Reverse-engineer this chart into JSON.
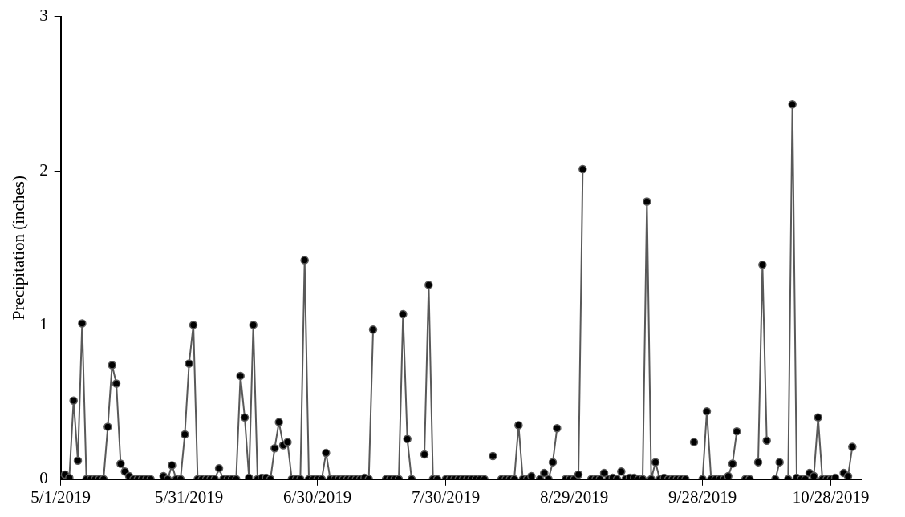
{
  "chart_data": {
    "type": "line",
    "ylabel": "Precipitation (inches)",
    "x": [
      "2019-05-01",
      "2019-05-02",
      "2019-05-03",
      "2019-05-04",
      "2019-05-05",
      "2019-05-06",
      "2019-05-07",
      "2019-05-08",
      "2019-05-09",
      "2019-05-10",
      "2019-05-11",
      "2019-05-12",
      "2019-05-13",
      "2019-05-14",
      "2019-05-15",
      "2019-05-16",
      "2019-05-17",
      "2019-05-18",
      "2019-05-19",
      "2019-05-20",
      "2019-05-21",
      "2019-05-22",
      "2019-05-23",
      "2019-05-24",
      "2019-05-25",
      "2019-05-26",
      "2019-05-27",
      "2019-05-28",
      "2019-05-29",
      "2019-05-30",
      "2019-05-31",
      "2019-06-01",
      "2019-06-02",
      "2019-06-03",
      "2019-06-04",
      "2019-06-05",
      "2019-06-06",
      "2019-06-07",
      "2019-06-08",
      "2019-06-09",
      "2019-06-10",
      "2019-06-11",
      "2019-06-12",
      "2019-06-13",
      "2019-06-14",
      "2019-06-15",
      "2019-06-16",
      "2019-06-17",
      "2019-06-18",
      "2019-06-19",
      "2019-06-20",
      "2019-06-21",
      "2019-06-22",
      "2019-06-23",
      "2019-06-24",
      "2019-06-25",
      "2019-06-26",
      "2019-06-27",
      "2019-06-28",
      "2019-06-29",
      "2019-06-30",
      "2019-07-01",
      "2019-07-02",
      "2019-07-03",
      "2019-07-04",
      "2019-07-05",
      "2019-07-06",
      "2019-07-07",
      "2019-07-08",
      "2019-07-09",
      "2019-07-10",
      "2019-07-11",
      "2019-07-12",
      "2019-07-13",
      "2019-07-14",
      "2019-07-15",
      "2019-07-16",
      "2019-07-17",
      "2019-07-18",
      "2019-07-19",
      "2019-07-20",
      "2019-07-21",
      "2019-07-22",
      "2019-07-23",
      "2019-07-24",
      "2019-07-25",
      "2019-07-26",
      "2019-07-27",
      "2019-07-28",
      "2019-07-29",
      "2019-07-30",
      "2019-07-31",
      "2019-08-01",
      "2019-08-02",
      "2019-08-03",
      "2019-08-04",
      "2019-08-05",
      "2019-08-06",
      "2019-08-07",
      "2019-08-08",
      "2019-08-09",
      "2019-08-10",
      "2019-08-11",
      "2019-08-12",
      "2019-08-13",
      "2019-08-14",
      "2019-08-15",
      "2019-08-16",
      "2019-08-17",
      "2019-08-18",
      "2019-08-19",
      "2019-08-20",
      "2019-08-21",
      "2019-08-22",
      "2019-08-23",
      "2019-08-24",
      "2019-08-25",
      "2019-08-26",
      "2019-08-27",
      "2019-08-28",
      "2019-08-29",
      "2019-08-30",
      "2019-08-31",
      "2019-09-01",
      "2019-09-02",
      "2019-09-03",
      "2019-09-04",
      "2019-09-05",
      "2019-09-06",
      "2019-09-07",
      "2019-09-08",
      "2019-09-09",
      "2019-09-10",
      "2019-09-11",
      "2019-09-12",
      "2019-09-13",
      "2019-09-14",
      "2019-09-15",
      "2019-09-16",
      "2019-09-17",
      "2019-09-18",
      "2019-09-19",
      "2019-09-20",
      "2019-09-21",
      "2019-09-22",
      "2019-09-23",
      "2019-09-24",
      "2019-09-25",
      "2019-09-26",
      "2019-09-27",
      "2019-09-28",
      "2019-09-29",
      "2019-09-30",
      "2019-10-01",
      "2019-10-02",
      "2019-10-03",
      "2019-10-04",
      "2019-10-05",
      "2019-10-06",
      "2019-10-07",
      "2019-10-08",
      "2019-10-09",
      "2019-10-10",
      "2019-10-11",
      "2019-10-12",
      "2019-10-13",
      "2019-10-14",
      "2019-10-15",
      "2019-10-16",
      "2019-10-17",
      "2019-10-18",
      "2019-10-19",
      "2019-10-20",
      "2019-10-21",
      "2019-10-22",
      "2019-10-23",
      "2019-10-24",
      "2019-10-25",
      "2019-10-26",
      "2019-10-27",
      "2019-10-28",
      "2019-10-29",
      "2019-10-30",
      "2019-10-31",
      "2019-11-01",
      "2019-11-02"
    ],
    "series": [
      {
        "color": "#595959",
        "values": [
          0,
          0.03,
          0.01,
          0.51,
          0.12,
          1.01,
          0,
          0,
          0,
          0,
          0,
          0.34,
          0.74,
          0.62,
          0.1,
          0.05,
          0.02,
          0,
          0,
          0,
          0,
          0,
          null,
          null,
          0.02,
          0,
          0.09,
          0,
          0,
          0.29,
          0.75,
          1.0,
          0,
          0,
          0,
          0,
          0,
          0.07,
          0,
          0,
          0,
          0,
          0.67,
          0.4,
          0.01,
          1.0,
          0,
          0.01,
          0.01,
          0,
          0.2,
          0.37,
          0.22,
          0.24,
          0,
          0,
          0,
          1.42,
          0,
          0,
          0,
          0,
          0.17,
          0,
          0,
          0,
          0,
          0,
          0,
          0,
          0,
          0.01,
          0,
          0.97,
          null,
          null,
          0,
          0,
          0,
          0,
          1.07,
          0.26,
          0,
          null,
          null,
          0.16,
          1.26,
          0,
          0,
          null,
          0,
          0,
          0,
          0,
          0,
          0,
          0,
          0,
          0,
          0,
          null,
          0.15,
          null,
          0,
          0,
          0,
          0,
          0.35,
          0,
          0,
          0.02,
          null,
          0,
          0.04,
          0,
          0.11,
          0.33,
          null,
          0,
          0,
          0,
          0.03,
          2.01,
          null,
          0,
          0,
          0,
          0.04,
          0,
          0.01,
          0,
          0.05,
          0,
          0.01,
          0.01,
          0,
          0,
          1.8,
          0,
          0.11,
          0,
          0.01,
          0,
          0,
          0,
          0,
          0,
          null,
          0.24,
          null,
          0,
          0.44,
          0,
          0,
          0,
          0,
          0.02,
          0.1,
          0.31,
          null,
          0,
          0,
          null,
          0.11,
          1.39,
          0.25,
          null,
          0,
          0.11,
          null,
          0,
          2.43,
          0.01,
          0,
          0,
          0.04,
          0.02,
          0.4,
          0,
          0,
          0,
          0.01,
          null,
          0.04,
          0.02,
          0.21
        ]
      }
    ],
    "xlim": [
      "2019-05-01",
      "2019-11-04"
    ],
    "xticks": [
      {
        "value": "2019-05-01",
        "label": "5/1/2019"
      },
      {
        "value": "2019-05-31",
        "label": "5/31/2019"
      },
      {
        "value": "2019-06-30",
        "label": "6/30/2019"
      },
      {
        "value": "2019-07-30",
        "label": "7/30/2019"
      },
      {
        "value": "2019-08-29",
        "label": "8/29/2019"
      },
      {
        "value": "2019-09-28",
        "label": "9/28/2019"
      },
      {
        "value": "2019-10-28",
        "label": "10/28/2019"
      }
    ],
    "ylim": [
      0,
      3
    ],
    "yticks": [
      0,
      1,
      2,
      3
    ],
    "grid": false,
    "legend": false,
    "marker": "circle",
    "line_style": "solid"
  }
}
